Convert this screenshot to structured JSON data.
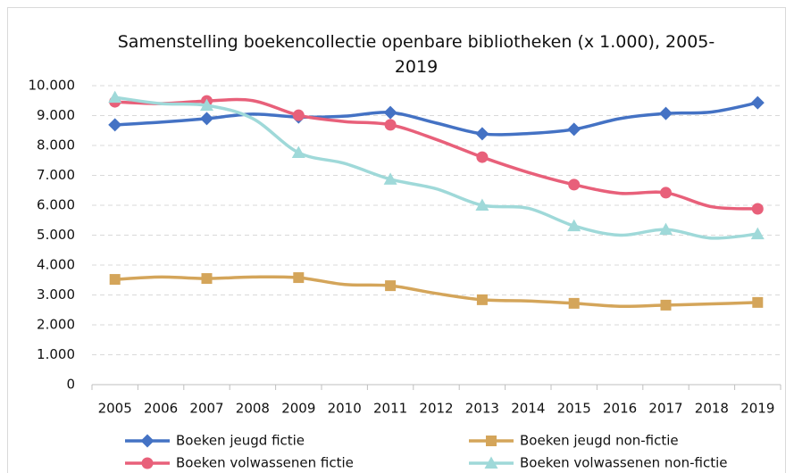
{
  "chart_data": {
    "type": "line",
    "title": "Samenstelling boekencollectie openbare bibliotheken (x 1.000), 2005-2019",
    "categories": [
      "2005",
      "2006",
      "2007",
      "2008",
      "2009",
      "2010",
      "2011",
      "2012",
      "2013",
      "2014",
      "2015",
      "2016",
      "2017",
      "2018",
      "2019"
    ],
    "series": [
      {
        "name": "Boeken jeugd fictie",
        "color": "#4472c4",
        "marker": "diamond",
        "values": [
          8690,
          8780,
          8900,
          9050,
          8950,
          8980,
          9100,
          8750,
          8390,
          8400,
          8540,
          8900,
          9070,
          9120,
          9430
        ]
      },
      {
        "name": "Boeken jeugd non-fictie",
        "color": "#d4a55a",
        "marker": "square",
        "values": [
          3520,
          3600,
          3550,
          3600,
          3580,
          3350,
          3310,
          3050,
          2840,
          2800,
          2720,
          2620,
          2660,
          2700,
          2750
        ]
      },
      {
        "name": "Boeken volwassenen fictie",
        "color": "#e8607a",
        "marker": "circle",
        "values": [
          9460,
          9400,
          9490,
          9500,
          9010,
          8800,
          8690,
          8200,
          7610,
          7100,
          6690,
          6400,
          6420,
          5950,
          5880
        ]
      },
      {
        "name": "Boeken volwassenen non-fictie",
        "color": "#9fd9d9",
        "marker": "triangle",
        "values": [
          9610,
          9400,
          9340,
          8900,
          7760,
          7400,
          6870,
          6550,
          6000,
          5900,
          5310,
          5000,
          5190,
          4900,
          5040
        ]
      }
    ],
    "ylim": [
      0,
      10000
    ],
    "yticks": [
      0,
      {
        "value": 1000,
        "label": "1.000"
      },
      {
        "value": 2000,
        "label": "2.000"
      },
      {
        "value": 3000,
        "label": "3.000"
      },
      {
        "value": 4000,
        "label": "4.000"
      },
      {
        "value": 5000,
        "label": "5.000"
      },
      {
        "value": 6000,
        "label": "6.000"
      },
      {
        "value": 7000,
        "label": "7.000"
      },
      {
        "value": 8000,
        "label": "8.000"
      },
      {
        "value": 9000,
        "label": "9.000"
      },
      {
        "value": 10000,
        "label": "10.000"
      }
    ],
    "grid": true,
    "legend": "bottom"
  }
}
